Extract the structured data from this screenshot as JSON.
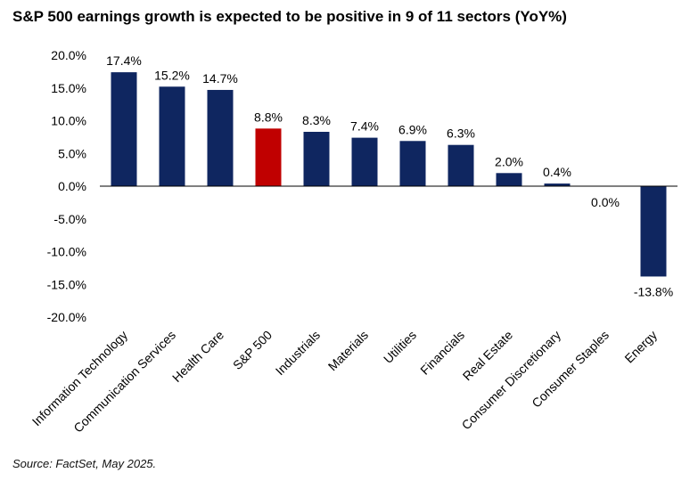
{
  "chart_data": {
    "type": "bar",
    "title": "S&P 500 earnings growth is expected to be positive in 9 of 11 sectors (YoY%)",
    "source": "Source: FactSet, May 2025.",
    "xlabel": "",
    "ylabel": "",
    "ylim": [
      -20,
      20
    ],
    "yticks": [
      20,
      15,
      10,
      5,
      0,
      -5,
      -10,
      -15,
      -20
    ],
    "ytick_labels": [
      "20.0%",
      "15.0%",
      "10.0%",
      "5.0%",
      "0.0%",
      "-5.0%",
      "-10.0%",
      "-15.0%",
      "-20.0%"
    ],
    "grid": false,
    "categories": [
      "Information Technology",
      "Communication Services",
      "Health Care",
      "S&P 500",
      "Industrials",
      "Materials",
      "Utilities",
      "Financials",
      "Real Estate",
      "Consumer Discretionary",
      "Consumer Staples",
      "Energy"
    ],
    "values": [
      17.4,
      15.2,
      14.7,
      8.8,
      8.3,
      7.4,
      6.9,
      6.3,
      2.0,
      0.4,
      0.0,
      -13.8
    ],
    "value_labels": [
      "17.4%",
      "15.2%",
      "14.7%",
      "8.8%",
      "8.3%",
      "7.4%",
      "6.9%",
      "6.3%",
      "2.0%",
      "0.4%",
      "0.0%",
      "-13.8%"
    ],
    "colors": {
      "default": "#0f2660",
      "highlight": "#c00000",
      "highlight_category": "S&P 500"
    }
  }
}
